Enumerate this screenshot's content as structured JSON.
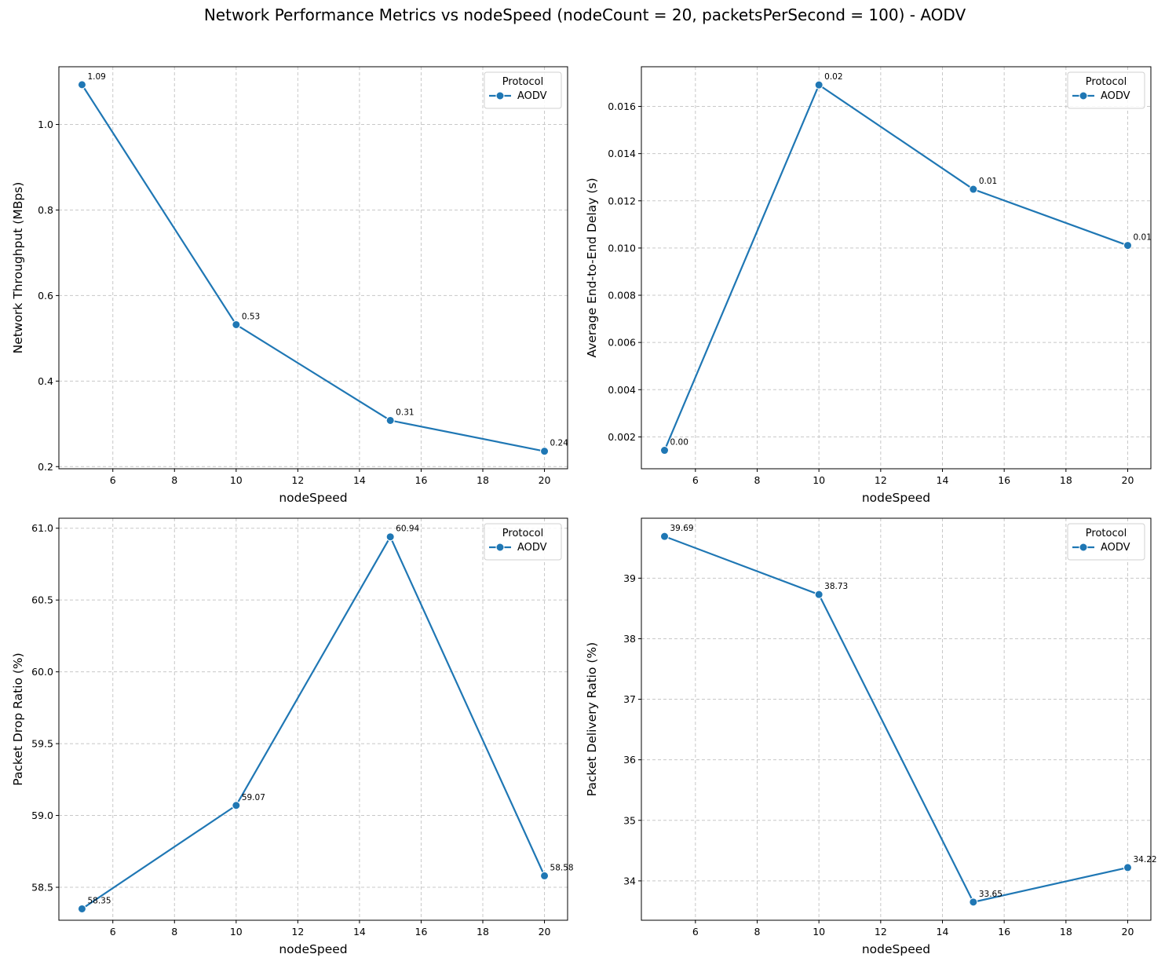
{
  "figure": {
    "title": "Network Performance Metrics vs nodeSpeed (nodeCount = 20, packetsPerSecond = 100) - AODV"
  },
  "colors": {
    "series": "#1f77b4",
    "grid": "#c8c8c8",
    "axis": "#000000"
  },
  "chart_data": [
    {
      "type": "line",
      "title": "",
      "xlabel": "nodeSpeed",
      "ylabel": "Network Throughput (MBps)",
      "x": [
        5,
        10,
        15,
        20
      ],
      "series": [
        {
          "name": "AODV",
          "values": [
            1.093,
            0.532,
            0.308,
            0.236
          ]
        }
      ],
      "data_labels": [
        "1.09",
        "0.53",
        "0.31",
        "0.24"
      ],
      "xlim": [
        4.25,
        20.75
      ],
      "ylim": [
        0.195,
        1.135
      ],
      "xticks": [
        6,
        8,
        10,
        12,
        14,
        16,
        18,
        20
      ],
      "xtick_labels": [
        "6",
        "8",
        "10",
        "12",
        "14",
        "16",
        "18",
        "20"
      ],
      "yticks": [
        0.2,
        0.4,
        0.6,
        0.8,
        1.0
      ],
      "ytick_labels": [
        "0.2",
        "0.4",
        "0.6",
        "0.8",
        "1.0"
      ],
      "grid": true,
      "legend": {
        "title": "Protocol",
        "position": "top-right",
        "entries": [
          "AODV"
        ]
      }
    },
    {
      "type": "line",
      "title": "",
      "xlabel": "nodeSpeed",
      "ylabel": "Average End-to-End Delay (s)",
      "x": [
        5,
        10,
        15,
        20
      ],
      "series": [
        {
          "name": "AODV",
          "values": [
            0.00143,
            0.01691,
            0.01249,
            0.01011
          ]
        }
      ],
      "data_labels": [
        "0.00",
        "0.02",
        "0.01",
        "0.01"
      ],
      "xlim": [
        4.25,
        20.75
      ],
      "ylim": [
        0.00065,
        0.01768
      ],
      "xticks": [
        6,
        8,
        10,
        12,
        14,
        16,
        18,
        20
      ],
      "xtick_labels": [
        "6",
        "8",
        "10",
        "12",
        "14",
        "16",
        "18",
        "20"
      ],
      "yticks": [
        0.002,
        0.004,
        0.006,
        0.008,
        0.01,
        0.012,
        0.014,
        0.016
      ],
      "ytick_labels": [
        "0.002",
        "0.004",
        "0.006",
        "0.008",
        "0.010",
        "0.012",
        "0.014",
        "0.016"
      ],
      "grid": true,
      "legend": {
        "title": "Protocol",
        "position": "top-right",
        "entries": [
          "AODV"
        ]
      }
    },
    {
      "type": "line",
      "title": "",
      "xlabel": "nodeSpeed",
      "ylabel": "Packet Drop Ratio (%)",
      "x": [
        5,
        10,
        15,
        20
      ],
      "series": [
        {
          "name": "AODV",
          "values": [
            58.35,
            59.07,
            60.94,
            58.58
          ]
        }
      ],
      "data_labels": [
        "58.35",
        "59.07",
        "60.94",
        "58.58"
      ],
      "xlim": [
        4.25,
        20.75
      ],
      "ylim": [
        58.2705,
        61.0695
      ],
      "xticks": [
        6,
        8,
        10,
        12,
        14,
        16,
        18,
        20
      ],
      "xtick_labels": [
        "6",
        "8",
        "10",
        "12",
        "14",
        "16",
        "18",
        "20"
      ],
      "yticks": [
        58.5,
        59.0,
        59.5,
        60.0,
        60.5,
        61.0
      ],
      "ytick_labels": [
        "58.5",
        "59.0",
        "59.5",
        "60.0",
        "60.5",
        "61.0"
      ],
      "grid": true,
      "legend": {
        "title": "Protocol",
        "position": "top-right",
        "entries": [
          "AODV"
        ]
      }
    },
    {
      "type": "line",
      "title": "",
      "xlabel": "nodeSpeed",
      "ylabel": "Packet Delivery Ratio (%)",
      "x": [
        5,
        10,
        15,
        20
      ],
      "series": [
        {
          "name": "AODV",
          "values": [
            39.69,
            38.73,
            33.65,
            34.22
          ]
        }
      ],
      "data_labels": [
        "39.69",
        "38.73",
        "33.65",
        "34.22"
      ],
      "xlim": [
        4.25,
        20.75
      ],
      "ylim": [
        33.35,
        39.99
      ],
      "xticks": [
        6,
        8,
        10,
        12,
        14,
        16,
        18,
        20
      ],
      "xtick_labels": [
        "6",
        "8",
        "10",
        "12",
        "14",
        "16",
        "18",
        "20"
      ],
      "yticks": [
        34,
        35,
        36,
        37,
        38,
        39
      ],
      "ytick_labels": [
        "34",
        "35",
        "36",
        "37",
        "38",
        "39"
      ],
      "grid": true,
      "legend": {
        "title": "Protocol",
        "position": "top-right",
        "entries": [
          "AODV"
        ]
      }
    }
  ]
}
